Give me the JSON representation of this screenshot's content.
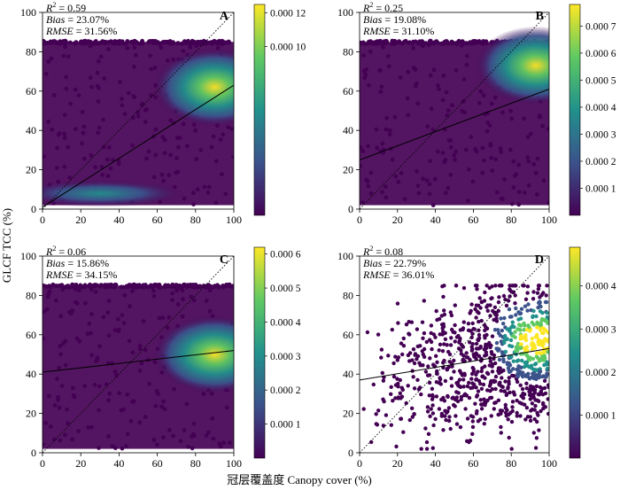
{
  "figure": {
    "ylabel": "GLCF TCC (%)",
    "xlabel": "冠层覆盖度 Canopy cover (%)"
  },
  "chart_data": [
    {
      "panel": "A",
      "type": "scatter",
      "stats": {
        "r2_label": "R",
        "r2_value": "= 0.59",
        "bias_label": "Bias",
        "bias_value": "= 23.07%",
        "rmse_label": "RMSE",
        "rmse_value": "= 31.56%"
      },
      "xlim": [
        0,
        100
      ],
      "ylim": [
        0,
        100
      ],
      "xticks": [
        "0",
        "20",
        "40",
        "60",
        "80",
        "100"
      ],
      "yticks": [
        "0",
        "20",
        "40",
        "60",
        "80",
        "100"
      ],
      "regression_line": {
        "x": [
          0,
          100
        ],
        "y": [
          1,
          63
        ]
      },
      "one_to_one_line": true,
      "colorbar": {
        "ticks": [
          "0.000 2",
          "0.000 4",
          "0.000 6",
          "0.000 8",
          "0.000 10",
          "0.000 12"
        ],
        "max": 0.000125
      },
      "density_hotspots": [
        {
          "x": 90,
          "y": 62,
          "level": 1.0
        },
        {
          "x": 30,
          "y": 8,
          "level": 0.35
        }
      ]
    },
    {
      "panel": "B",
      "type": "scatter",
      "stats": {
        "r2_label": "R",
        "r2_value": "= 0.25",
        "bias_label": "Bias",
        "bias_value": "= 19.08%",
        "rmse_label": "RMSE",
        "rmse_value": "= 31.10%"
      },
      "xlim": [
        0,
        100
      ],
      "ylim": [
        0,
        100
      ],
      "xticks": [
        "0",
        "20",
        "40",
        "60",
        "80",
        "100"
      ],
      "yticks": [
        "0",
        "20",
        "40",
        "60",
        "80",
        "100"
      ],
      "regression_line": {
        "x": [
          0,
          100
        ],
        "y": [
          25,
          61
        ]
      },
      "one_to_one_line": true,
      "colorbar": {
        "ticks": [
          "0.000 1",
          "0.000 2",
          "0.000 3",
          "0.000 4",
          "0.000 5",
          "0.000 6",
          "0.000 7"
        ],
        "max": 0.00078
      },
      "density_hotspots": [
        {
          "x": 93,
          "y": 73,
          "level": 1.0
        }
      ]
    },
    {
      "panel": "C",
      "type": "scatter",
      "stats": {
        "r2_label": "R",
        "r2_value": "= 0.06",
        "bias_label": "Bias",
        "bias_value": "= 15.86%",
        "rmse_label": "RMSE",
        "rmse_value": "= 34.15%"
      },
      "xlim": [
        0,
        100
      ],
      "ylim": [
        0,
        100
      ],
      "xticks": [
        "0",
        "20",
        "40",
        "60",
        "80",
        "100"
      ],
      "yticks": [
        "0",
        "20",
        "40",
        "60",
        "80",
        "100"
      ],
      "regression_line": {
        "x": [
          0,
          100
        ],
        "y": [
          41,
          52
        ]
      },
      "one_to_one_line": true,
      "colorbar": {
        "ticks": [
          "0.000 1",
          "0.000 2",
          "0.000 3",
          "0.000 4",
          "0.000 5",
          "0.000 6"
        ],
        "max": 0.00062
      },
      "density_hotspots": [
        {
          "x": 90,
          "y": 50,
          "level": 1.0
        }
      ]
    },
    {
      "panel": "D",
      "type": "scatter",
      "stats": {
        "r2_label": "R",
        "r2_value": "= 0.08",
        "bias_label": "Bias",
        "bias_value": "= 22.79%",
        "rmse_label": "RMSE",
        "rmse_value": "= 36.01%"
      },
      "xlim": [
        0,
        100
      ],
      "ylim": [
        0,
        100
      ],
      "xticks": [
        "0",
        "20",
        "40",
        "60",
        "80",
        "100"
      ],
      "yticks": [
        "0",
        "20",
        "40",
        "60",
        "80",
        "100"
      ],
      "regression_line": {
        "x": [
          0,
          100
        ],
        "y": [
          37,
          53
        ]
      },
      "one_to_one_line": true,
      "colorbar": {
        "ticks": [
          "0.000 1",
          "0.000 2",
          "0.000 3",
          "0.000 4"
        ],
        "max": 0.00049
      },
      "density_hotspots": [
        {
          "x": 93,
          "y": 57,
          "level": 1.0
        }
      ]
    }
  ],
  "colormap": [
    "#440154",
    "#3b528b",
    "#21918c",
    "#5ec962",
    "#fde725"
  ]
}
